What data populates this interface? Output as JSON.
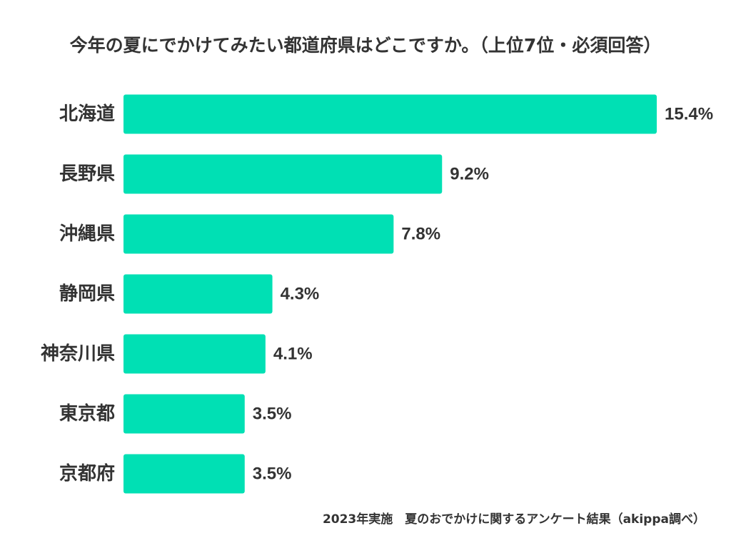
{
  "chart_data": {
    "type": "bar",
    "orientation": "horizontal",
    "title": "今年の夏にでかけてみたい都道府県はどこですか。（上位7位・必須回答）",
    "categories": [
      "北海道",
      "長野県",
      "沖縄県",
      "静岡県",
      "神奈川県",
      "東京都",
      "京都府"
    ],
    "values": [
      15.4,
      9.2,
      7.8,
      4.3,
      4.1,
      3.5,
      3.5
    ],
    "value_labels": [
      "15.4%",
      "9.2%",
      "7.8%",
      "4.3%",
      "4.1%",
      "3.5%",
      "3.5%"
    ],
    "xlim": [
      0,
      15.4
    ],
    "grid": false,
    "legend": "none",
    "bar_color": "#00e0b4",
    "text_color": "#333333"
  },
  "footer": {
    "source": "2023年実施　夏のおでかけに関するアンケート結果（akippa調べ）"
  }
}
